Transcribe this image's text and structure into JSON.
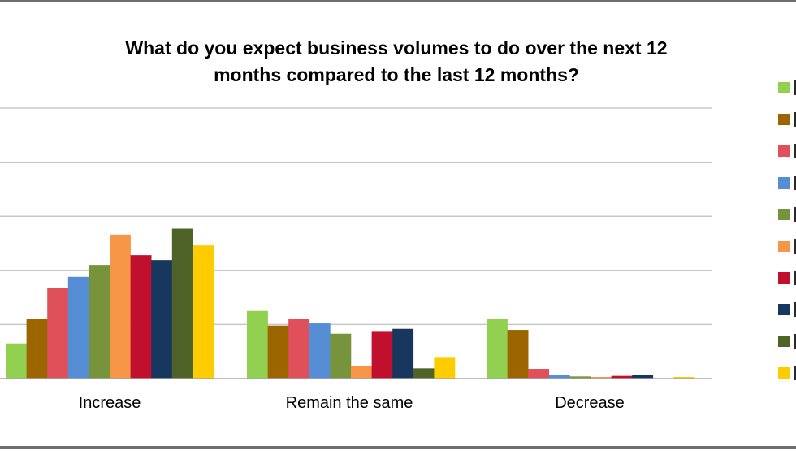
{
  "chart_data": {
    "type": "bar",
    "title": "What do you expect business volumes to do over the next 12 months compared to the last 12 months?",
    "title_lines": [
      "What do you expect business volumes to do over the next 12",
      "months compared to the last 12 months?"
    ],
    "categories": [
      "Increase",
      "Remain the same",
      "Decrease"
    ],
    "ylim": [
      0,
      50
    ],
    "grid": true,
    "legend_position": "right",
    "series": [
      {
        "color": "#92d050",
        "values": [
          6.5,
          12.5,
          11
        ]
      },
      {
        "color": "#9c6500",
        "values": [
          11,
          9.8,
          9
        ]
      },
      {
        "color": "#e0505a",
        "values": [
          16.8,
          11,
          1.8
        ]
      },
      {
        "color": "#558ed5",
        "values": [
          18.8,
          10.2,
          0.6
        ]
      },
      {
        "color": "#77933c",
        "values": [
          21,
          8.3,
          0.4
        ]
      },
      {
        "color": "#f79646",
        "values": [
          26.6,
          2.4,
          0.3
        ]
      },
      {
        "color": "#c0102e",
        "values": [
          22.8,
          8.8,
          0.5
        ]
      },
      {
        "color": "#17375e",
        "values": [
          21.9,
          9.2,
          0.6
        ]
      },
      {
        "color": "#4f6228",
        "values": [
          27.7,
          1.9,
          0
        ]
      },
      {
        "color": "#ffcc00",
        "values": [
          24.6,
          4,
          0.3
        ]
      }
    ]
  }
}
